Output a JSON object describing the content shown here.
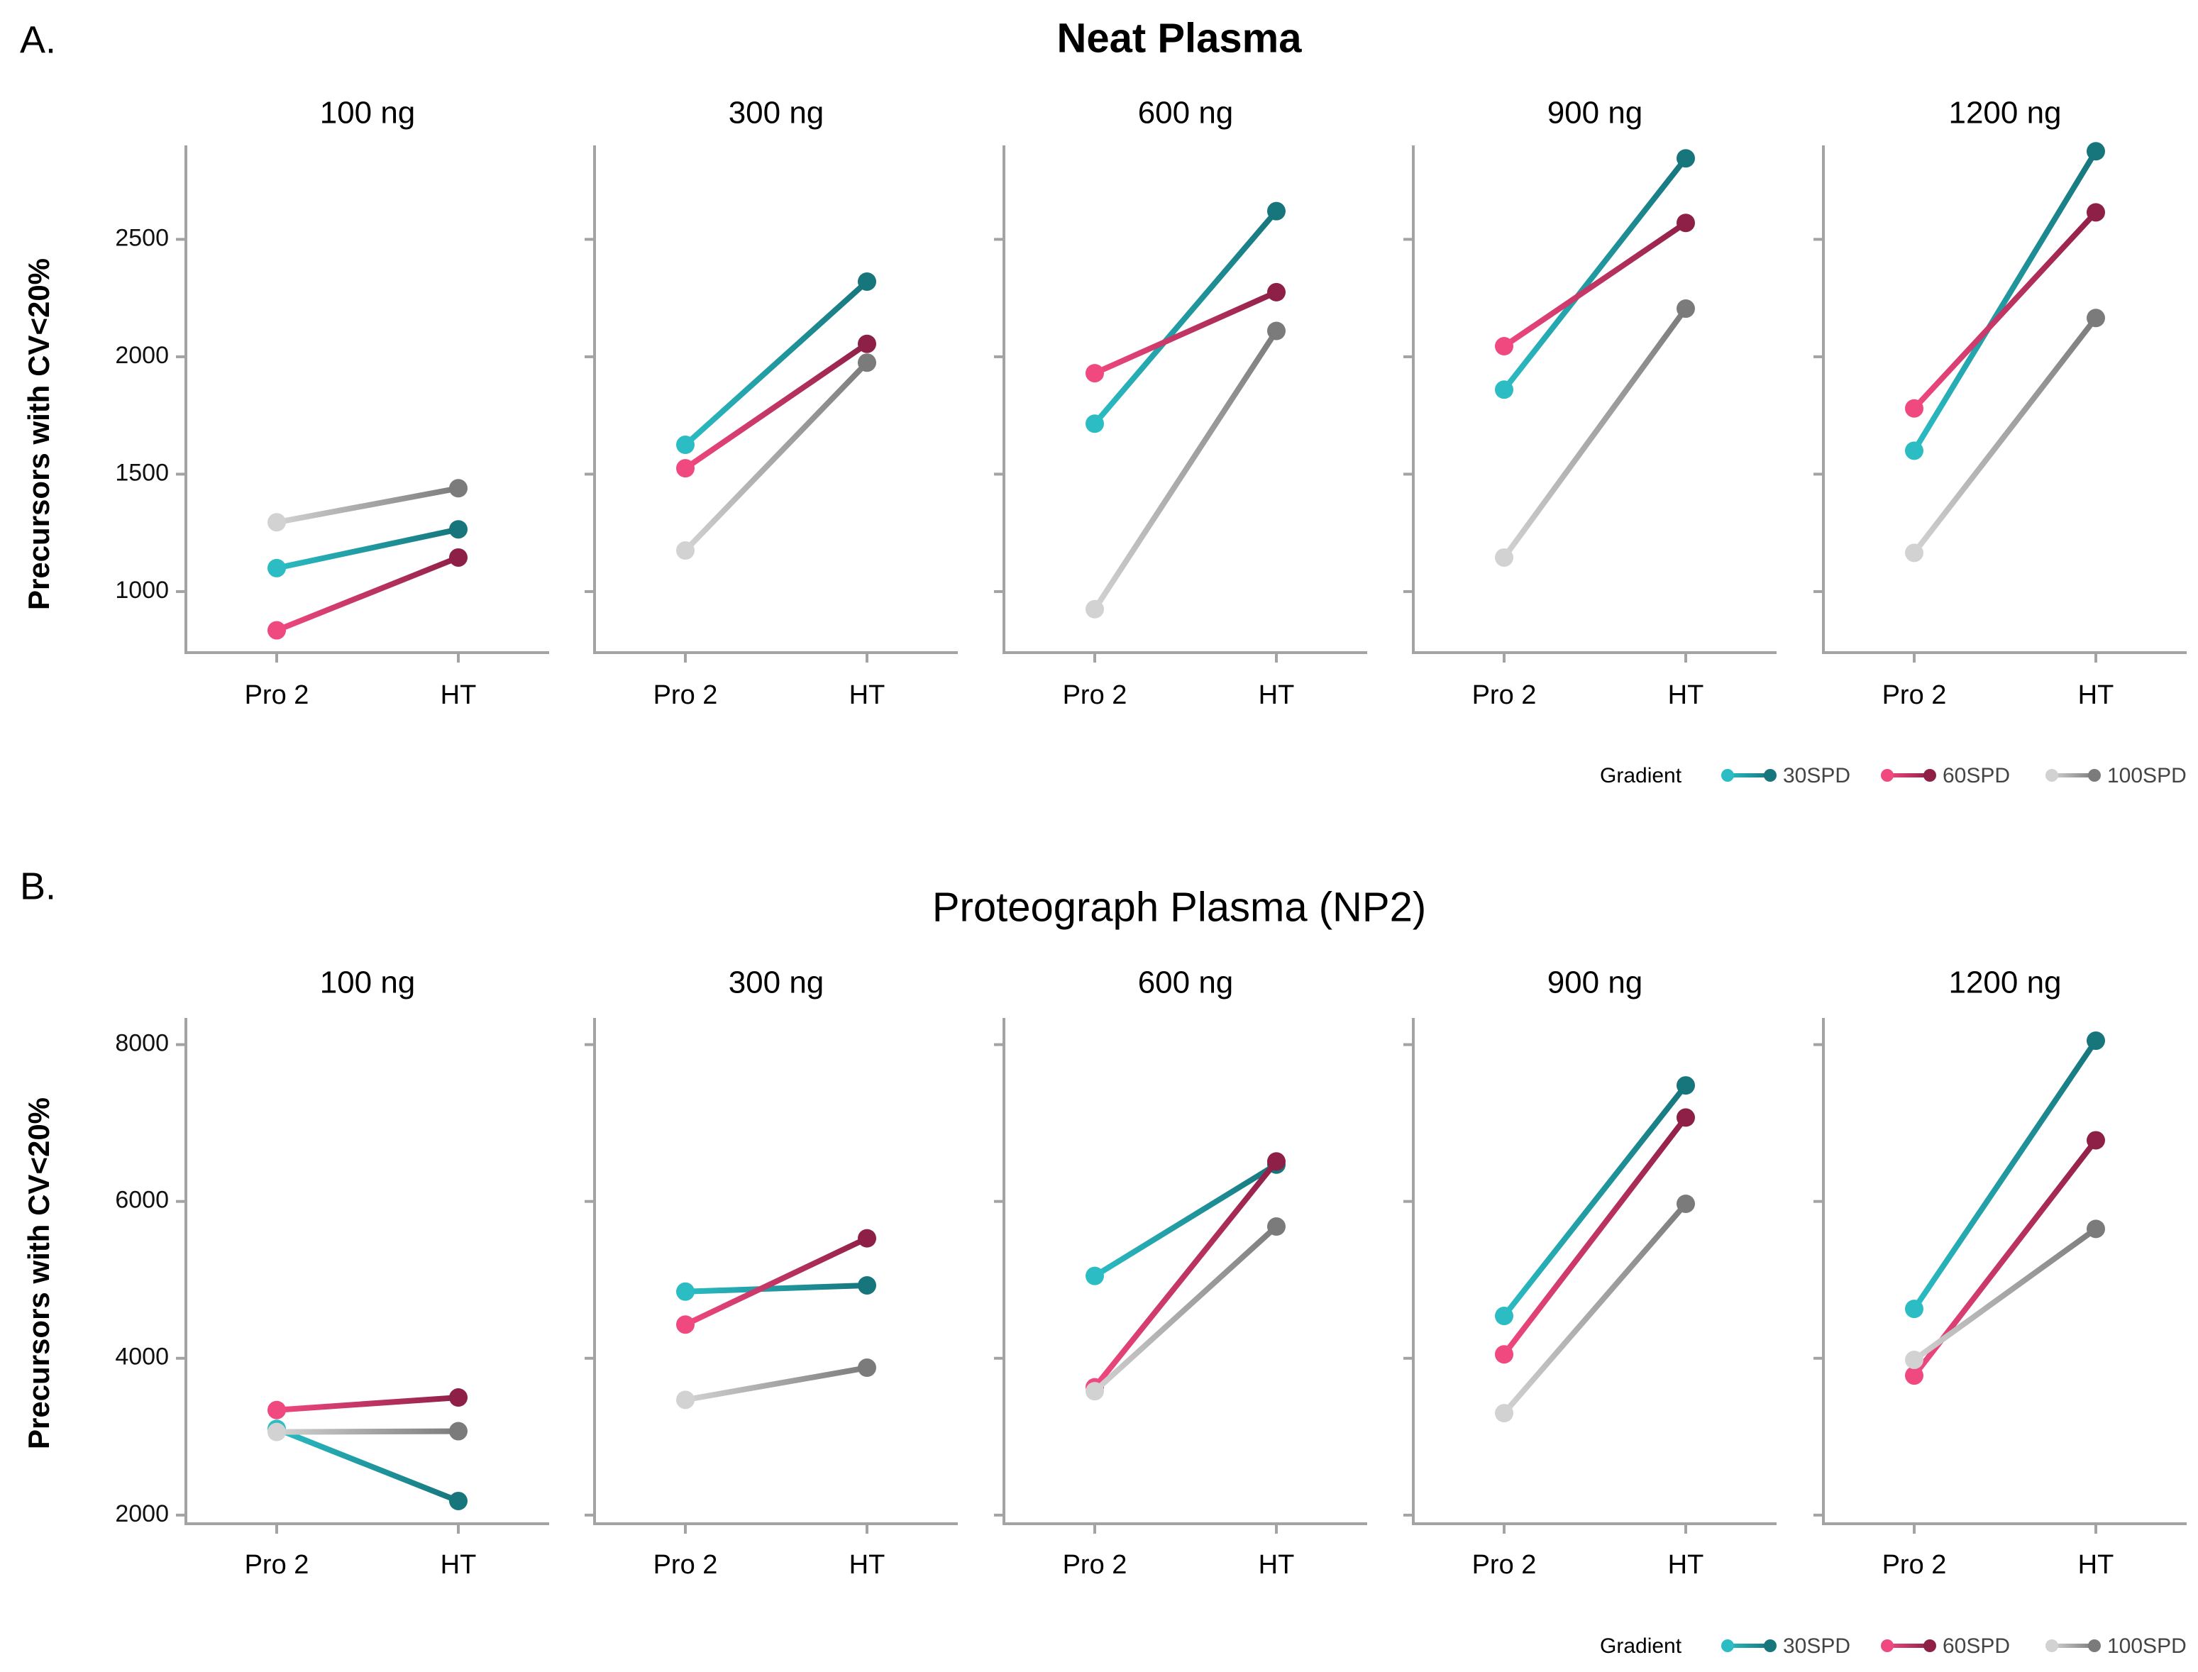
{
  "figure": {
    "x_categories": [
      "Pro 2",
      "HT"
    ],
    "legend_title": "Gradient",
    "legend_entries": [
      "30SPD",
      "60SPD",
      "100SPD"
    ],
    "colors": {
      "30SPD": {
        "start": "#2bbcc4",
        "end": "#17757c"
      },
      "60SPD": {
        "start": "#f0497f",
        "end": "#8e2048"
      },
      "100SPD": {
        "start": "#d2d2d2",
        "end": "#7b7b7b"
      },
      "axis": "#a3a3a3"
    }
  },
  "chart_data": [
    {
      "type": "line",
      "label": "A.",
      "title": "Neat Plasma",
      "ylabel": "Precursors with CV<20%",
      "ylim": [
        740,
        2900
      ],
      "yticks": [
        1000,
        1500,
        2000,
        2500
      ],
      "panels": [
        {
          "title": "100 ng",
          "series": [
            {
              "name": "30SPD",
              "values": [
                1100,
                1265
              ]
            },
            {
              "name": "60SPD",
              "values": [
                835,
                1145
              ]
            },
            {
              "name": "100SPD",
              "values": [
                1295,
                1440
              ]
            }
          ]
        },
        {
          "title": "300 ng",
          "series": [
            {
              "name": "30SPD",
              "values": [
                1625,
                2320
              ]
            },
            {
              "name": "60SPD",
              "values": [
                1525,
                2055
              ]
            },
            {
              "name": "100SPD",
              "values": [
                1175,
                1975
              ]
            }
          ]
        },
        {
          "title": "600 ng",
          "series": [
            {
              "name": "30SPD",
              "values": [
                1715,
                2620
              ]
            },
            {
              "name": "60SPD",
              "values": [
                1930,
                2275
              ]
            },
            {
              "name": "100SPD",
              "values": [
                925,
                2110
              ]
            }
          ]
        },
        {
          "title": "900 ng",
          "series": [
            {
              "name": "30SPD",
              "values": [
                1860,
                2845
              ]
            },
            {
              "name": "60SPD",
              "values": [
                2045,
                2570
              ]
            },
            {
              "name": "100SPD",
              "values": [
                1145,
                2205
              ]
            }
          ]
        },
        {
          "title": "1200 ng",
          "series": [
            {
              "name": "30SPD",
              "values": [
                1600,
                2875
              ]
            },
            {
              "name": "60SPD",
              "values": [
                1780,
                2615
              ]
            },
            {
              "name": "100SPD",
              "values": [
                1165,
                2165
              ]
            }
          ]
        }
      ]
    },
    {
      "type": "line",
      "label": "B.",
      "title": "Proteograph Plasma (NP2)",
      "ylabel": "Precursors with CV<20%",
      "ylim": [
        1890,
        8340
      ],
      "yticks": [
        2000,
        4000,
        6000,
        8000
      ],
      "panels": [
        {
          "title": "100 ng",
          "series": [
            {
              "name": "30SPD",
              "values": [
                3100,
                2180
              ]
            },
            {
              "name": "60SPD",
              "values": [
                3340,
                3500
              ]
            },
            {
              "name": "100SPD",
              "values": [
                3060,
                3070
              ]
            }
          ]
        },
        {
          "title": "300 ng",
          "series": [
            {
              "name": "30SPD",
              "values": [
                4850,
                4930
              ]
            },
            {
              "name": "60SPD",
              "values": [
                4430,
                5530
              ]
            },
            {
              "name": "100SPD",
              "values": [
                3470,
                3880
              ]
            }
          ]
        },
        {
          "title": "600 ng",
          "series": [
            {
              "name": "30SPD",
              "values": [
                5050,
                6470
              ]
            },
            {
              "name": "60SPD",
              "values": [
                3630,
                6510
              ]
            },
            {
              "name": "100SPD",
              "values": [
                3580,
                5680
              ]
            }
          ]
        },
        {
          "title": "900 ng",
          "series": [
            {
              "name": "30SPD",
              "values": [
                4540,
                7480
              ]
            },
            {
              "name": "60SPD",
              "values": [
                4050,
                7070
              ]
            },
            {
              "name": "100SPD",
              "values": [
                3300,
                5970
              ]
            }
          ]
        },
        {
          "title": "1200 ng",
          "series": [
            {
              "name": "30SPD",
              "values": [
                4630,
                8050
              ]
            },
            {
              "name": "60SPD",
              "values": [
                3780,
                6780
              ]
            },
            {
              "name": "100SPD",
              "values": [
                3980,
                5650
              ]
            }
          ]
        }
      ]
    }
  ]
}
